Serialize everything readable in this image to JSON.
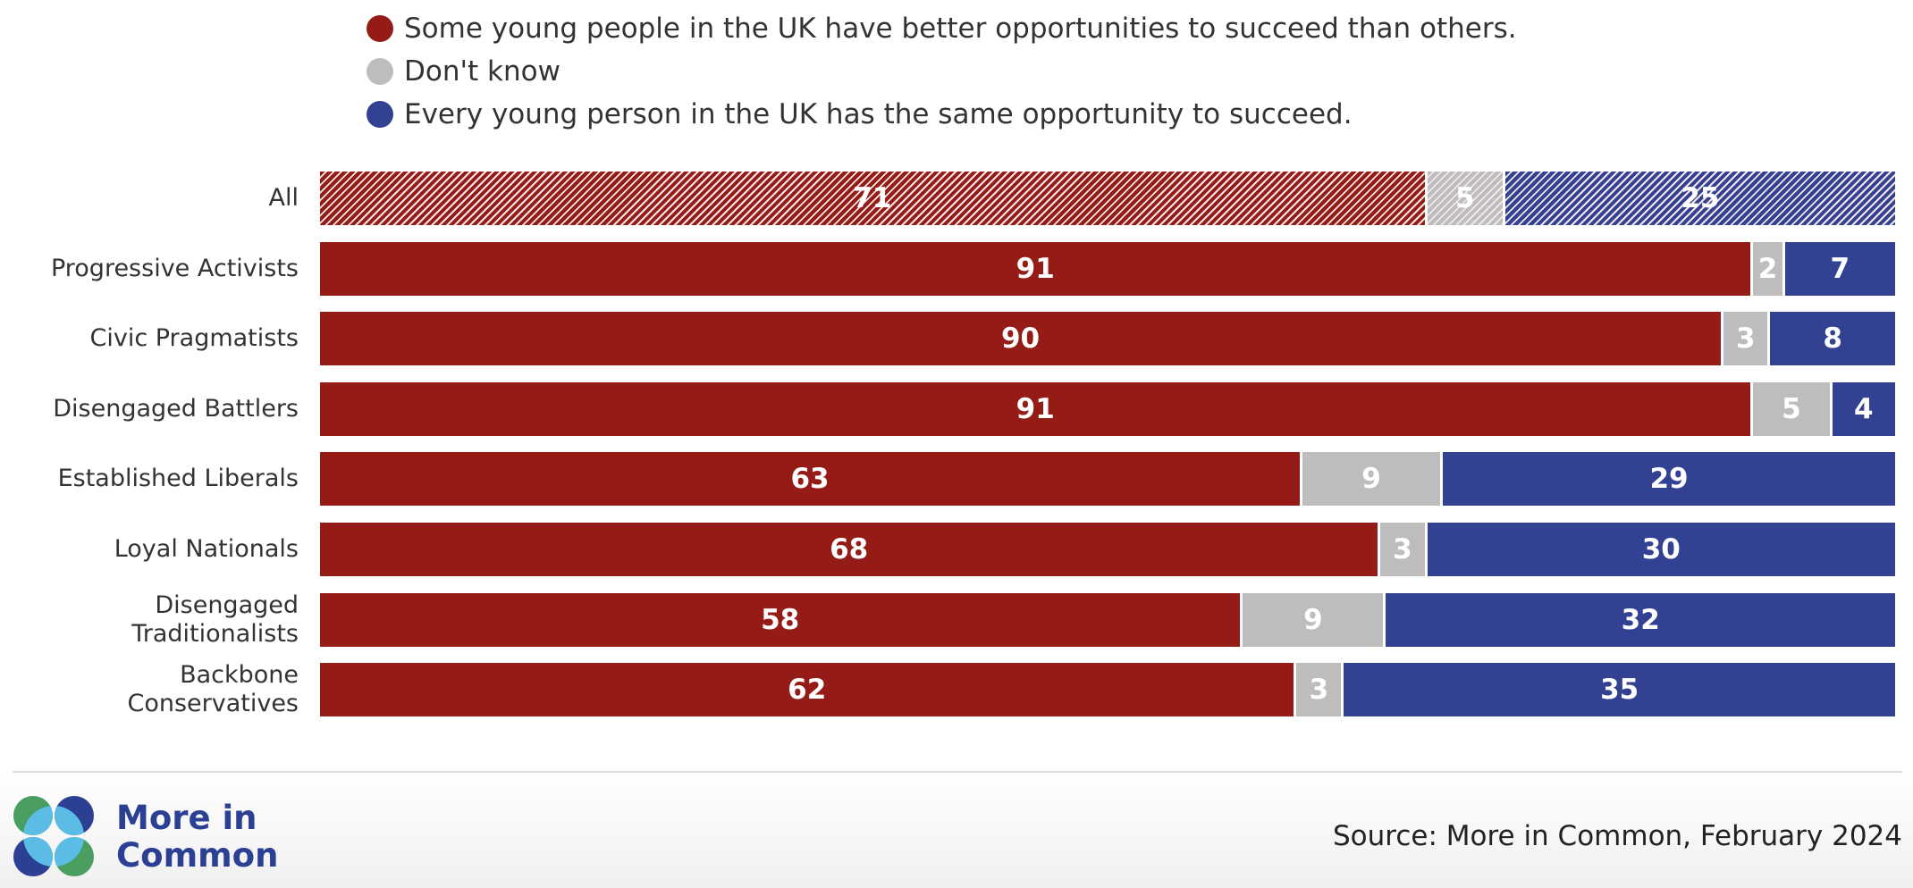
{
  "chart_data": {
    "type": "bar",
    "orientation": "horizontal",
    "stacked": true,
    "categories": [
      "All",
      "Progressive Activists",
      "Civic Pragmatists",
      "Disengaged Battlers",
      "Established Liberals",
      "Loyal Nationals",
      "Disengaged\nTraditionalists",
      "Backbone\nConservatives"
    ],
    "series": [
      {
        "name": "Some young people in the UK have better opportunities to succeed than others.",
        "color": "#951c16",
        "values": [
          71,
          91,
          90,
          91,
          63,
          68,
          58,
          62
        ]
      },
      {
        "name": "Don't know",
        "color": "#bdbdbd",
        "values": [
          5,
          2,
          3,
          5,
          9,
          3,
          9,
          3
        ]
      },
      {
        "name": "Every young person in the UK has the same opportunity to succeed.",
        "color": "#324191",
        "values": [
          25,
          7,
          8,
          4,
          29,
          30,
          32,
          35
        ]
      }
    ],
    "hatched_categories": [
      "All"
    ],
    "legend_position": "top",
    "grid": false,
    "source": "Source: More in Common, February 2024"
  },
  "brand": {
    "logo_text_line1": "More in",
    "logo_text_line2": "Common",
    "colors": {
      "blue": "#2b3f93",
      "light": "#5bbde6",
      "green": "#4a9e5f"
    }
  }
}
